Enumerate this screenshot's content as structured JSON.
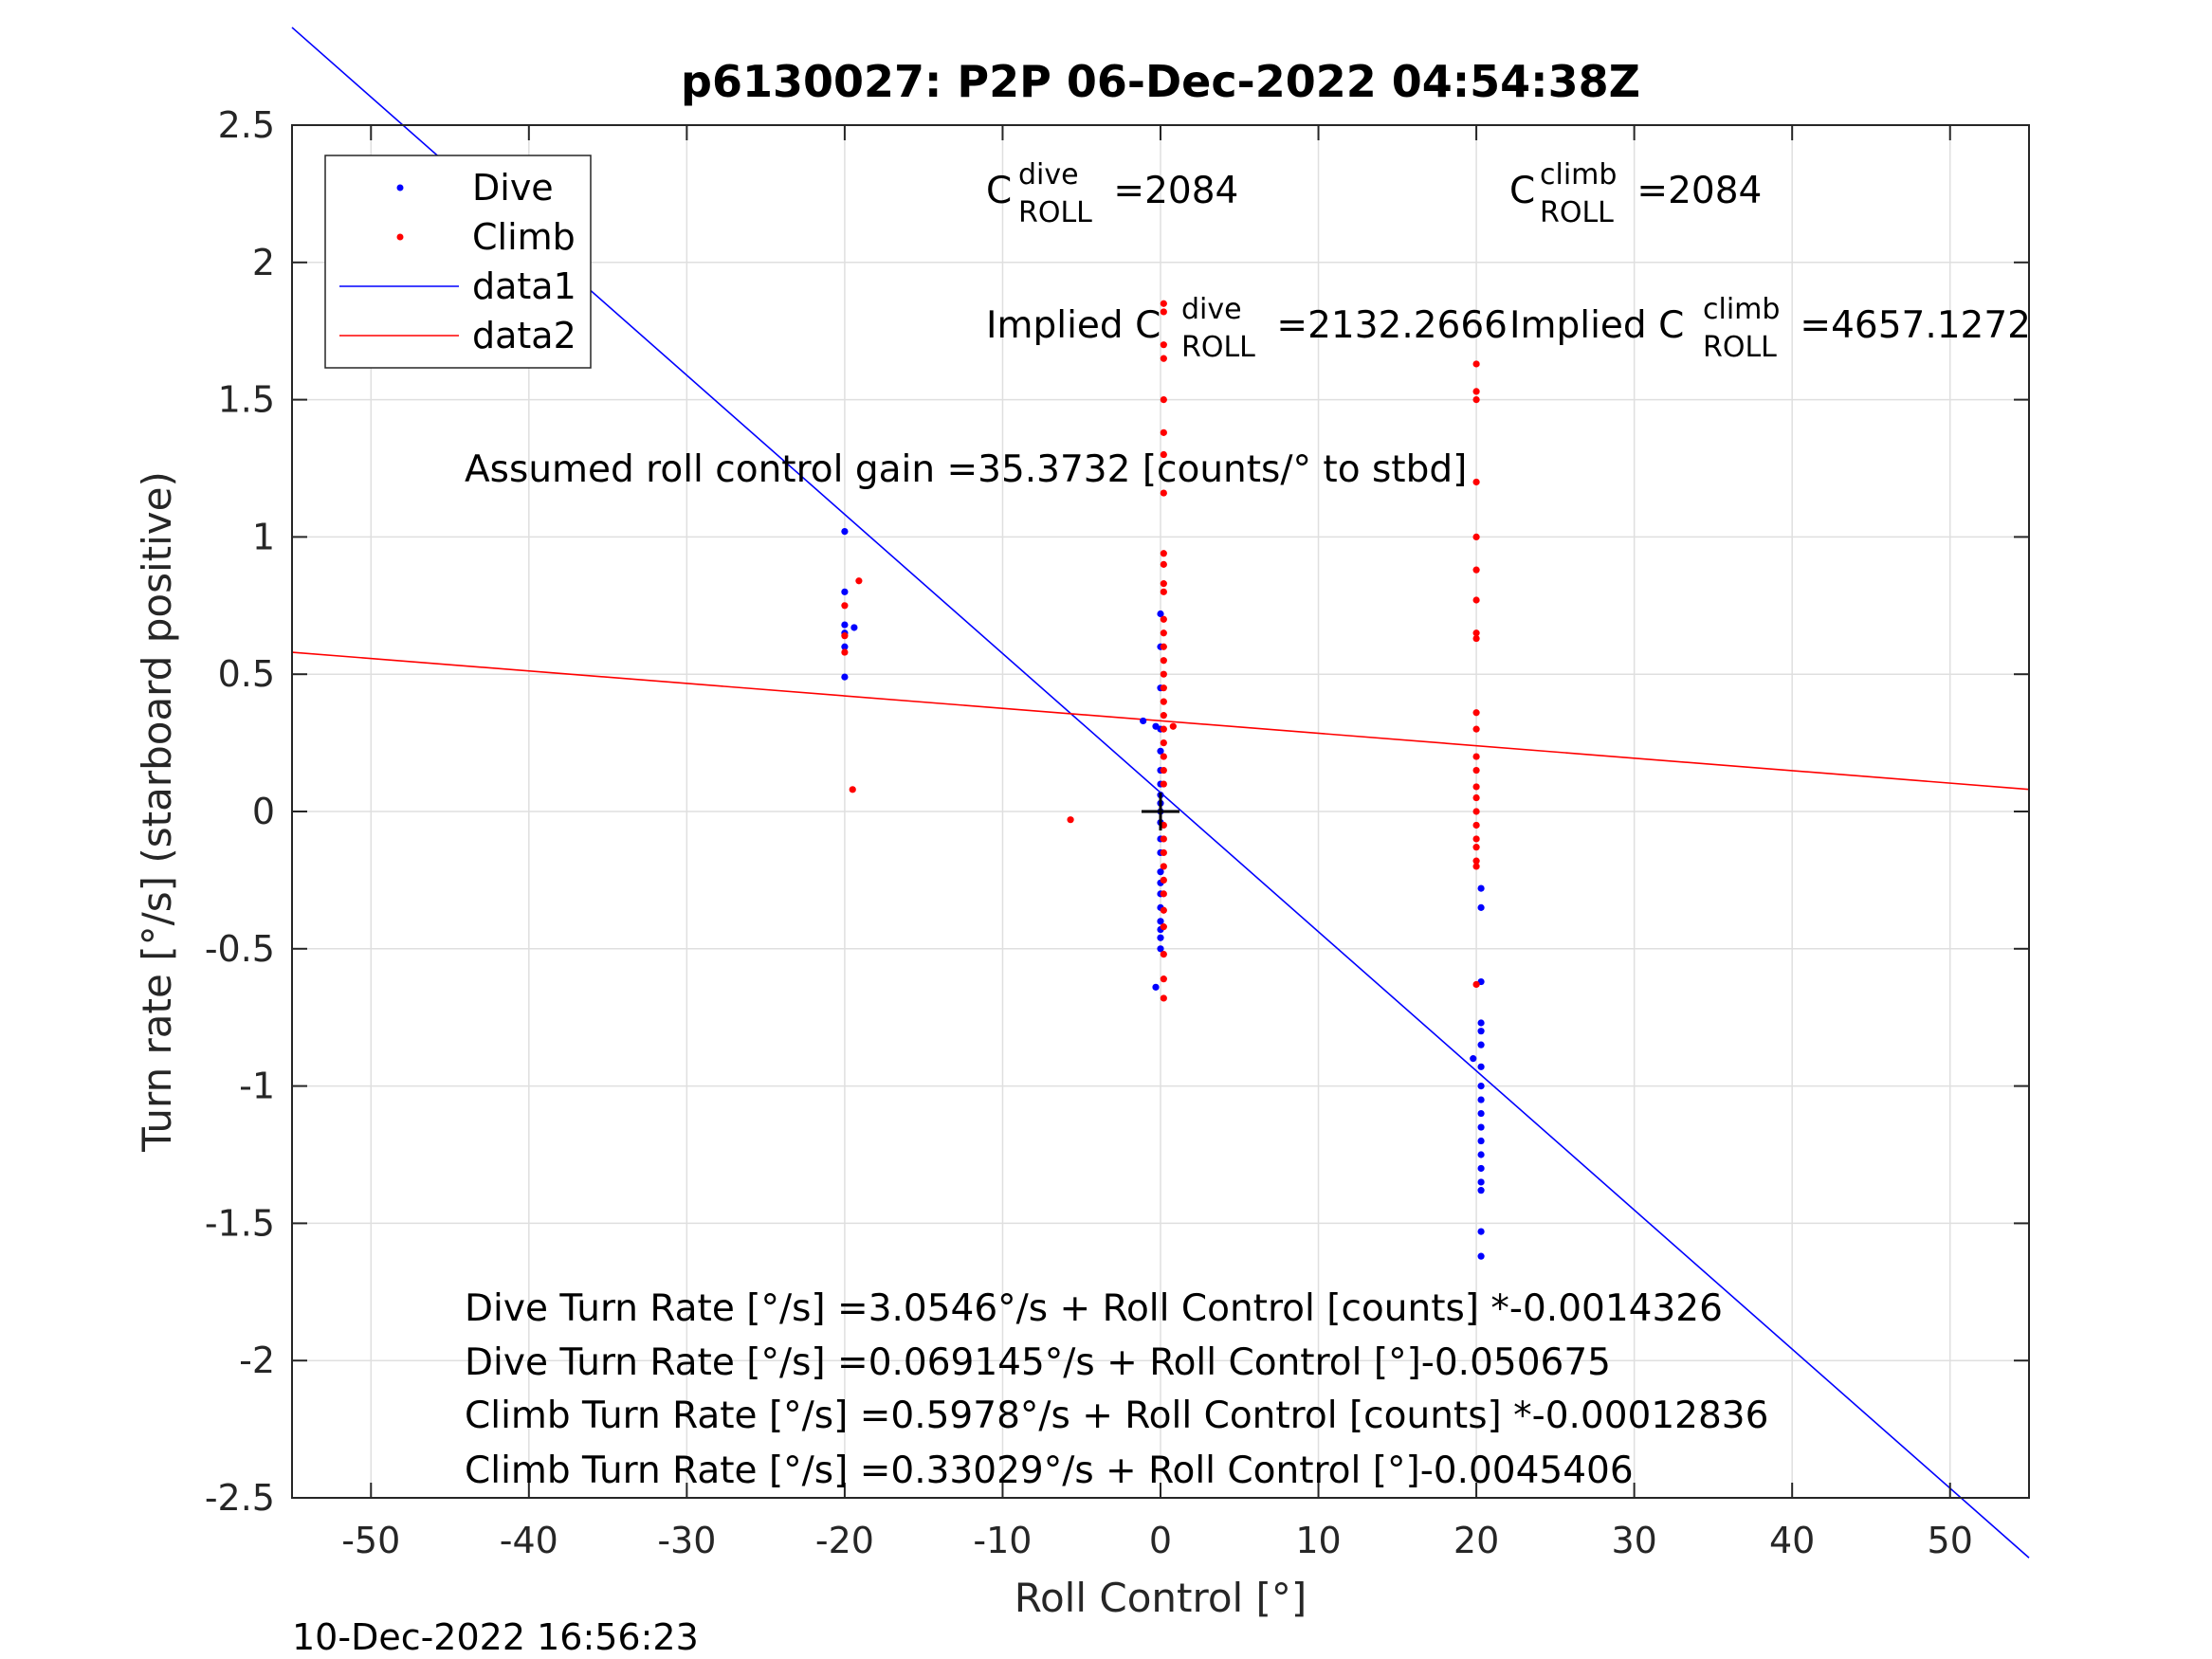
{
  "chart_data": {
    "type": "scatter",
    "title": "p6130027: P2P 06-Dec-2022 04:54:38Z",
    "xlabel": "Roll Control [°]",
    "ylabel": "Turn rate [°/s] (starboard positive)",
    "xlim": [
      -55,
      55
    ],
    "ylim": [
      -2.5,
      2.5
    ],
    "xticks": [
      -50,
      -40,
      -30,
      -20,
      -10,
      0,
      10,
      20,
      30,
      40,
      50
    ],
    "yticks": [
      2.5,
      2,
      1.5,
      1,
      0.5,
      0,
      -0.5,
      -1,
      -1.5,
      -2,
      -2.5
    ],
    "xtick_labels": [
      "-50",
      "-40",
      "-30",
      "-20",
      "-10",
      "0",
      "10",
      "20",
      "30",
      "40",
      "50"
    ],
    "ytick_labels": [
      "2.5",
      "2",
      "1.5",
      "1",
      "0.5",
      "0",
      "-0.5",
      "-1",
      "-1.5",
      "-2",
      "-2.5"
    ],
    "grid": true,
    "legend_position": "top-left",
    "series": [
      {
        "name": "Dive",
        "kind": "points",
        "color": "#0000ff",
        "points": [
          [
            -20,
            1.02
          ],
          [
            -20,
            0.8
          ],
          [
            -20,
            0.68
          ],
          [
            -20,
            0.65
          ],
          [
            -20,
            0.6
          ],
          [
            -20,
            0.49
          ],
          [
            -19.4,
            0.67
          ],
          [
            -1.1,
            0.33
          ],
          [
            -0.3,
            0.31
          ],
          [
            -0.3,
            -0.64
          ],
          [
            0,
            0.72
          ],
          [
            0,
            0.6
          ],
          [
            0,
            0.45
          ],
          [
            0,
            0.3
          ],
          [
            0,
            0.22
          ],
          [
            0,
            0.15
          ],
          [
            0,
            0.1
          ],
          [
            0,
            0.06
          ],
          [
            0,
            0.03
          ],
          [
            0,
            0.0
          ],
          [
            0,
            -0.04
          ],
          [
            0,
            -0.1
          ],
          [
            0,
            -0.15
          ],
          [
            0,
            -0.22
          ],
          [
            0,
            -0.26
          ],
          [
            0,
            -0.3
          ],
          [
            0,
            -0.35
          ],
          [
            0,
            -0.4
          ],
          [
            0,
            -0.43
          ],
          [
            0,
            -0.46
          ],
          [
            0,
            -0.5
          ],
          [
            19.8,
            -0.9
          ],
          [
            20.3,
            -0.62
          ],
          [
            20.3,
            -0.77
          ],
          [
            20.3,
            -0.8
          ],
          [
            20.3,
            -0.85
          ],
          [
            20.3,
            -0.93
          ],
          [
            20.3,
            -1.0
          ],
          [
            20.3,
            -1.05
          ],
          [
            20.3,
            -1.1
          ],
          [
            20.3,
            -1.15
          ],
          [
            20.3,
            -1.2
          ],
          [
            20.3,
            -1.25
          ],
          [
            20.3,
            -1.3
          ],
          [
            20.3,
            -1.35
          ],
          [
            20.3,
            -1.38
          ],
          [
            20.3,
            -1.53
          ],
          [
            20.3,
            -1.62
          ],
          [
            20.3,
            -0.28
          ],
          [
            20.3,
            -0.35
          ]
        ]
      },
      {
        "name": "Climb",
        "kind": "points",
        "color": "#ff0000",
        "points": [
          [
            -20,
            0.75
          ],
          [
            -20,
            0.64
          ],
          [
            -20,
            0.58
          ],
          [
            -19.5,
            0.08
          ],
          [
            -19.1,
            0.84
          ],
          [
            -5.7,
            -0.03
          ],
          [
            0.2,
            1.85
          ],
          [
            0.2,
            1.82
          ],
          [
            0.2,
            1.7
          ],
          [
            0.2,
            1.65
          ],
          [
            0.2,
            1.5
          ],
          [
            0.2,
            1.38
          ],
          [
            0.2,
            1.3
          ],
          [
            0.2,
            1.16
          ],
          [
            0.2,
            0.94
          ],
          [
            0.2,
            0.9
          ],
          [
            0.2,
            0.83
          ],
          [
            0.2,
            0.8
          ],
          [
            0.2,
            0.7
          ],
          [
            0.2,
            0.65
          ],
          [
            0.2,
            0.6
          ],
          [
            0.2,
            0.55
          ],
          [
            0.2,
            0.5
          ],
          [
            0.2,
            0.45
          ],
          [
            0.2,
            0.4
          ],
          [
            0.2,
            0.35
          ],
          [
            0.2,
            0.3
          ],
          [
            0.2,
            0.25
          ],
          [
            0.2,
            0.2
          ],
          [
            0.2,
            0.15
          ],
          [
            0.2,
            0.1
          ],
          [
            0.2,
            -0.05
          ],
          [
            0.2,
            -0.1
          ],
          [
            0.2,
            -0.15
          ],
          [
            0.2,
            -0.2
          ],
          [
            0.2,
            -0.25
          ],
          [
            0.2,
            -0.3
          ],
          [
            0.2,
            -0.36
          ],
          [
            0.2,
            -0.42
          ],
          [
            0.2,
            -0.52
          ],
          [
            0.2,
            -0.61
          ],
          [
            0.2,
            -0.68
          ],
          [
            0.8,
            0.31
          ],
          [
            20,
            1.63
          ],
          [
            20,
            1.53
          ],
          [
            20,
            1.5
          ],
          [
            20,
            1.2
          ],
          [
            20,
            1.0
          ],
          [
            20,
            0.88
          ],
          [
            20,
            0.77
          ],
          [
            20,
            0.65
          ],
          [
            20,
            0.63
          ],
          [
            20,
            0.36
          ],
          [
            20,
            0.3
          ],
          [
            20,
            0.2
          ],
          [
            20,
            0.15
          ],
          [
            20,
            0.09
          ],
          [
            20,
            0.05
          ],
          [
            20,
            0.0
          ],
          [
            20,
            -0.05
          ],
          [
            20,
            -0.1
          ],
          [
            20,
            -0.13
          ],
          [
            20,
            -0.18
          ],
          [
            20,
            -0.2
          ],
          [
            20,
            -0.63
          ]
        ]
      },
      {
        "name": "data1",
        "kind": "line",
        "color": "#0000ff",
        "x": [
          -55,
          55
        ],
        "y": [
          2.8558,
          -2.7184
        ]
      },
      {
        "name": "data2",
        "kind": "line",
        "color": "#ff0000",
        "x": [
          -55,
          55
        ],
        "y": [
          0.58,
          0.0806
        ]
      }
    ],
    "origin_marker": [
      0,
      0
    ],
    "annotations": {
      "c_dive": {
        "base": "C",
        "sup": "dive",
        "sub": "ROLL",
        "value": " =2084"
      },
      "c_climb": {
        "base": "C",
        "sup": "climb",
        "sub": "ROLL",
        "value": " =2084"
      },
      "implied_dive": {
        "base": "Implied C",
        "sup": "dive",
        "sub": "ROLL",
        "value": " =2132.2666"
      },
      "implied_climb": {
        "base": "Implied C",
        "sup": "climb",
        "sub": "ROLL",
        "value": " =4657.1272"
      },
      "gain": "Assumed roll control gain =35.3732 [counts/° to stbd]",
      "fit_lines": [
        "Dive Turn Rate [°/s] =3.0546°/s + Roll Control [counts] *-0.0014326",
        "Dive Turn Rate [°/s] =0.069145°/s + Roll Control [°]-0.050675",
        "Climb Turn Rate [°/s] =0.5978°/s + Roll Control [counts] *-0.00012836",
        "Climb Turn Rate [°/s] =0.33029°/s + Roll Control [°]-0.0045406"
      ]
    },
    "footer": "10-Dec-2022 16:56:23"
  }
}
